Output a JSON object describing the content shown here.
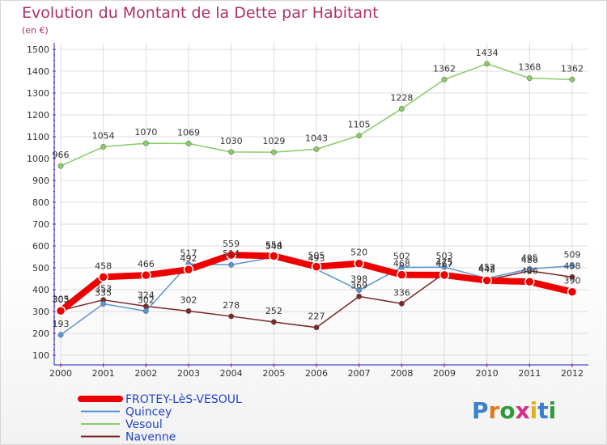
{
  "title": "Evolution du Montant de la Dette par Habitant",
  "unit": "(en €)",
  "logo": "Proxiti",
  "colors": {
    "title": "#b0306a",
    "axis": "#1a1acc",
    "tick": "#cc2222",
    "grid": "#dcdcdc",
    "label": "#333333"
  },
  "chart_data": {
    "type": "line",
    "x": [
      "2000",
      "2001",
      "2002",
      "2003",
      "2004",
      "2005",
      "2006",
      "2007",
      "2008",
      "2009",
      "2010",
      "2011",
      "2012"
    ],
    "ylim": [
      100,
      1500
    ],
    "yticks": [
      "100",
      "200",
      "300",
      "400",
      "500",
      "600",
      "700",
      "800",
      "900",
      "1000",
      "1100",
      "1200",
      "1300",
      "1400",
      "1500"
    ],
    "grid": true,
    "legend_position": "bottom-left",
    "series": [
      {
        "name": "FROTEY-LèS-VESOUL",
        "color": "#ee0000",
        "width": 8,
        "values": [
          303,
          458,
          466,
          492,
          559,
          554,
          505,
          520,
          468,
          467,
          442,
          436,
          390
        ],
        "labels": [
          "303",
          "458",
          "466",
          "492",
          "559",
          "554",
          "505",
          "520",
          "468",
          "467",
          "442",
          "436",
          "390"
        ]
      },
      {
        "name": "Quincey",
        "color": "#5a96d2",
        "width": 1.5,
        "values": [
          193,
          335,
          302,
          517,
          514,
          548,
          493,
          398,
          502,
          503,
          452,
          495,
          509
        ],
        "labels": [
          "193",
          "335",
          "302",
          "517",
          "514",
          "548",
          "493",
          "398",
          "502",
          "503",
          "452",
          "495",
          "509"
        ]
      },
      {
        "name": "Vesoul",
        "color": "#88cc66",
        "width": 1.5,
        "values": [
          966,
          1054,
          1070,
          1069,
          1030,
          1029,
          1043,
          1105,
          1228,
          1362,
          1434,
          1368,
          1362
        ],
        "labels": [
          "966",
          "1054",
          "1070",
          "1069",
          "1030",
          "1029",
          "1043",
          "1105",
          "1228",
          "1362",
          "1434",
          "1368",
          "1362"
        ]
      },
      {
        "name": "Navenne",
        "color": "#7a2828",
        "width": 1.5,
        "values": [
          305,
          353,
          324,
          302,
          278,
          252,
          227,
          369,
          336,
          475,
          444,
          486,
          458
        ],
        "labels": [
          "305",
          "353",
          "324",
          "302",
          "278",
          "252",
          "227",
          "369",
          "336",
          "475",
          "444",
          "486",
          "458"
        ]
      }
    ]
  }
}
